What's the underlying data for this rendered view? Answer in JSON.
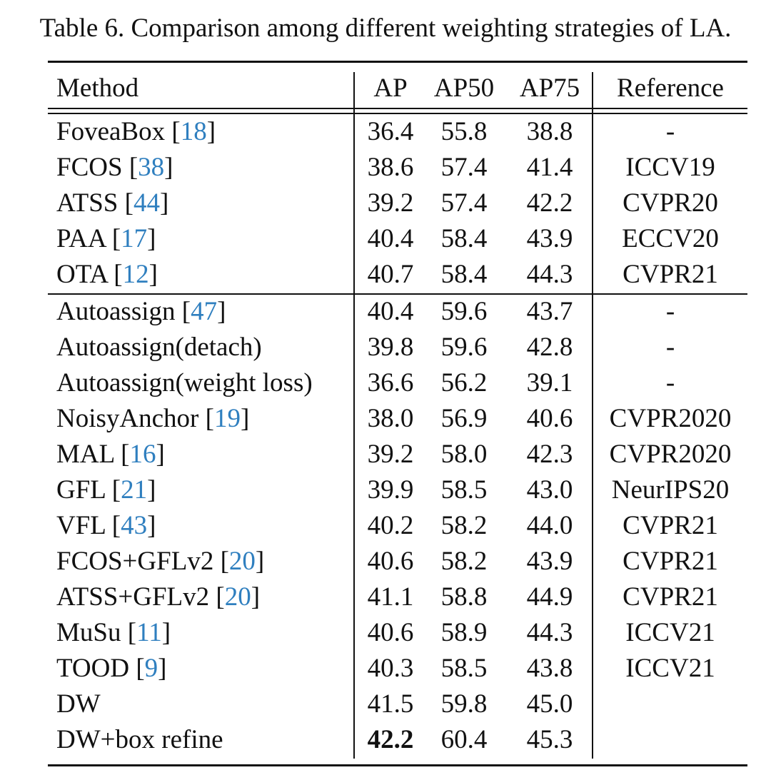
{
  "caption": "Table 6. Comparison among different weighting strategies of LA.",
  "header": {
    "method": "Method",
    "ap": "AP",
    "ap50": "AP50",
    "ap75": "AP75",
    "reference": "Reference"
  },
  "groups": [
    [
      {
        "method": "FoveaBox",
        "cite": "18",
        "ap": "36.4",
        "ap50": "55.8",
        "ap75": "38.8",
        "ref": "-"
      },
      {
        "method": "FCOS",
        "cite": "38",
        "ap": "38.6",
        "ap50": "57.4",
        "ap75": "41.4",
        "ref": "ICCV19"
      },
      {
        "method": "ATSS",
        "cite": "44",
        "ap": "39.2",
        "ap50": "57.4",
        "ap75": "42.2",
        "ref": "CVPR20"
      },
      {
        "method": "PAA",
        "cite": "17",
        "ap": "40.4",
        "ap50": "58.4",
        "ap75": "43.9",
        "ref": "ECCV20"
      },
      {
        "method": "OTA",
        "cite": "12",
        "ap": "40.7",
        "ap50": "58.4",
        "ap75": "44.3",
        "ref": "CVPR21"
      }
    ],
    [
      {
        "method": "Autoassign",
        "cite": "47",
        "ap": "40.4",
        "ap50": "59.6",
        "ap75": "43.7",
        "ref": "-"
      },
      {
        "method": "Autoassign(detach)",
        "cite": "",
        "ap": "39.8",
        "ap50": "59.6",
        "ap75": "42.8",
        "ref": "-"
      },
      {
        "method": "Autoassign(weight loss)",
        "cite": "",
        "ap": "36.6",
        "ap50": "56.2",
        "ap75": "39.1",
        "ref": "-"
      },
      {
        "method": "NoisyAnchor",
        "cite": "19",
        "ap": "38.0",
        "ap50": "56.9",
        "ap75": "40.6",
        "ref": "CVPR2020"
      },
      {
        "method": "MAL",
        "cite": "16",
        "ap": "39.2",
        "ap50": "58.0",
        "ap75": "42.3",
        "ref": "CVPR2020"
      },
      {
        "method": "GFL",
        "cite": "21",
        "ap": "39.9",
        "ap50": "58.5",
        "ap75": "43.0",
        "ref": "NeurIPS20"
      },
      {
        "method": "VFL",
        "cite": "43",
        "ap": "40.2",
        "ap50": "58.2",
        "ap75": "44.0",
        "ref": "CVPR21"
      },
      {
        "method": "FCOS+GFLv2",
        "cite": "20",
        "ap": "40.6",
        "ap50": "58.2",
        "ap75": "43.9",
        "ref": "CVPR21"
      },
      {
        "method": "ATSS+GFLv2",
        "cite": "20",
        "ap": "41.1",
        "ap50": "58.8",
        "ap75": "44.9",
        "ref": "CVPR21"
      },
      {
        "method": "MuSu",
        "cite": "11",
        "ap": "40.6",
        "ap50": "58.9",
        "ap75": "44.3",
        "ref": "ICCV21"
      },
      {
        "method": "TOOD",
        "cite": "9",
        "ap": "40.3",
        "ap50": "58.5",
        "ap75": "43.8",
        "ref": "ICCV21"
      },
      {
        "method": "DW",
        "cite": "",
        "ap": "41.5",
        "ap50": "59.8",
        "ap75": "45.0",
        "ref": ""
      },
      {
        "method": "DW+box refine",
        "cite": "",
        "ap": "42.2",
        "ap50": "60.4",
        "ap75": "45.3",
        "ref": "",
        "bold_ap": true
      }
    ]
  ]
}
